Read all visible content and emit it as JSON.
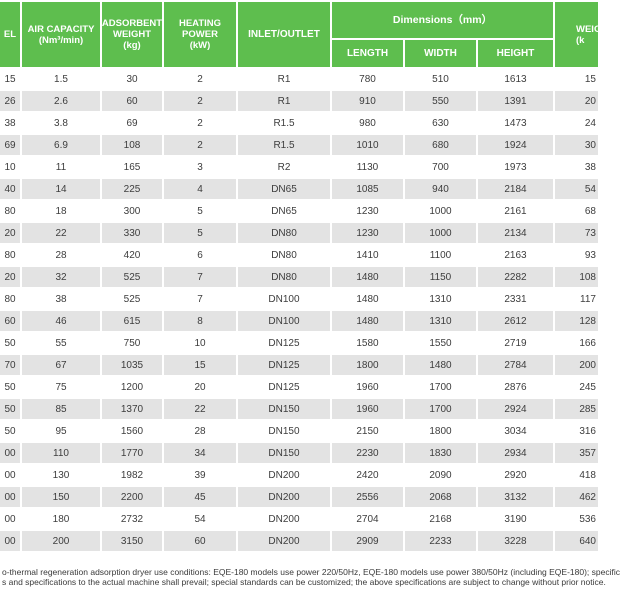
{
  "colors": {
    "header_green": "#5ebe4e",
    "row_alt_gray": "#e3e3e3",
    "text_dark": "#3d3d3d"
  },
  "table": {
    "header": {
      "model_partial": "EL",
      "air_capacity_line1": "AIR CAPACITY",
      "air_capacity_line2": "(Nm³/min)",
      "adsorbent_line1": "ADSORBENT",
      "adsorbent_line2": "WEIGHT",
      "adsorbent_line3": "(kg)",
      "heating_line1": "HEATING",
      "heating_line2": "POWER",
      "heating_line3": "(kW)",
      "inlet_outlet": "INLET/OUTLET",
      "dimensions_group": "Dimensions（mm）",
      "length": "LENGTH",
      "width": "WIDTH",
      "height": "HEIGHT",
      "weight_line1": "WEIG",
      "weight_line2": "(k"
    },
    "col_keys": [
      "model",
      "air-capacity",
      "adsorbent-weight",
      "heating-power",
      "inlet-outlet",
      "length",
      "width",
      "height",
      "weight"
    ],
    "rows": [
      [
        "15",
        "1.5",
        "30",
        "2",
        "R1",
        "780",
        "510",
        "1613",
        "15"
      ],
      [
        "26",
        "2.6",
        "60",
        "2",
        "R1",
        "910",
        "550",
        "1391",
        "20"
      ],
      [
        "38",
        "3.8",
        "69",
        "2",
        "R1.5",
        "980",
        "630",
        "1473",
        "24"
      ],
      [
        "69",
        "6.9",
        "108",
        "2",
        "R1.5",
        "1010",
        "680",
        "1924",
        "30"
      ],
      [
        "10",
        "11",
        "165",
        "3",
        "R2",
        "1130",
        "700",
        "1973",
        "38"
      ],
      [
        "40",
        "14",
        "225",
        "4",
        "DN65",
        "1085",
        "940",
        "2184",
        "54"
      ],
      [
        "80",
        "18",
        "300",
        "5",
        "DN65",
        "1230",
        "1000",
        "2161",
        "68"
      ],
      [
        "20",
        "22",
        "330",
        "5",
        "DN80",
        "1230",
        "1000",
        "2134",
        "73"
      ],
      [
        "80",
        "28",
        "420",
        "6",
        "DN80",
        "1410",
        "1100",
        "2163",
        "93"
      ],
      [
        "20",
        "32",
        "525",
        "7",
        "DN80",
        "1480",
        "1150",
        "2282",
        "108"
      ],
      [
        "80",
        "38",
        "525",
        "7",
        "DN100",
        "1480",
        "1310",
        "2331",
        "117"
      ],
      [
        "60",
        "46",
        "615",
        "8",
        "DN100",
        "1480",
        "1310",
        "2612",
        "128"
      ],
      [
        "50",
        "55",
        "750",
        "10",
        "DN125",
        "1580",
        "1550",
        "2719",
        "166"
      ],
      [
        "70",
        "67",
        "1035",
        "15",
        "DN125",
        "1800",
        "1480",
        "2784",
        "200"
      ],
      [
        "50",
        "75",
        "1200",
        "20",
        "DN125",
        "1960",
        "1700",
        "2876",
        "245"
      ],
      [
        "50",
        "85",
        "1370",
        "22",
        "DN150",
        "1960",
        "1700",
        "2924",
        "285"
      ],
      [
        "50",
        "95",
        "1560",
        "28",
        "DN150",
        "2150",
        "1800",
        "3034",
        "316"
      ],
      [
        "00",
        "110",
        "1770",
        "34",
        "DN150",
        "2230",
        "1830",
        "2934",
        "357"
      ],
      [
        "00",
        "130",
        "1982",
        "39",
        "DN200",
        "2420",
        "2090",
        "2920",
        "418"
      ],
      [
        "00",
        "150",
        "2200",
        "45",
        "DN200",
        "2556",
        "2068",
        "3132",
        "462"
      ],
      [
        "00",
        "180",
        "2732",
        "54",
        "DN200",
        "2704",
        "2168",
        "3190",
        "536"
      ],
      [
        "00",
        "200",
        "3150",
        "60",
        "DN200",
        "2909",
        "2233",
        "3228",
        "640"
      ]
    ]
  },
  "footer": {
    "line1": "o-thermal regeneration adsorption dryer use conditions: EQE-180 models use power 220/50Hz, EQE-180 models use power 380/50Hz (including EQE-180); specific",
    "line2": "s and specifications to the actual machine shall prevail; special standards can be customized; the above specifications are subject to change without prior notice."
  }
}
